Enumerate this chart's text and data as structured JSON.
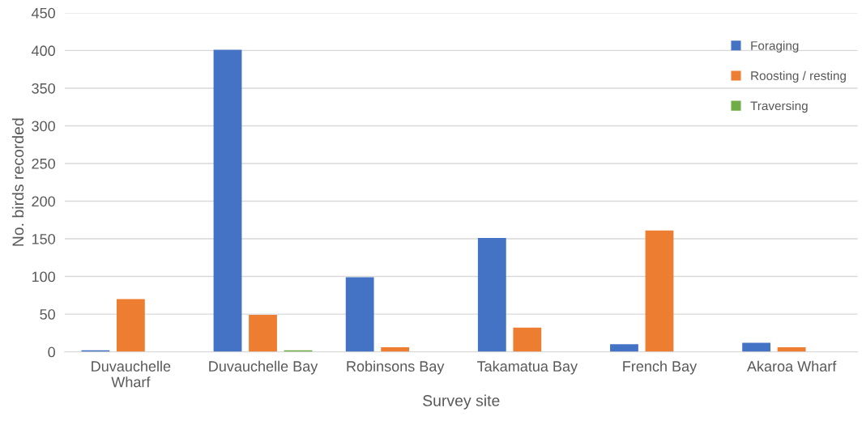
{
  "chart_data": {
    "type": "bar",
    "xlabel": "Survey site",
    "ylabel": "No. birds recorded",
    "categories": [
      "Duvauchelle\nWharf",
      "Duvauchelle Bay",
      "Robinsons Bay",
      "Takamatua Bay",
      "French Bay",
      "Akaroa Wharf"
    ],
    "series": [
      {
        "name": "Foraging",
        "color": "#4472c4",
        "values": [
          2,
          401,
          99,
          151,
          10,
          12
        ]
      },
      {
        "name": "Roosting / resting",
        "color": "#ed7d31",
        "values": [
          70,
          49,
          6,
          32,
          161,
          6
        ]
      },
      {
        "name": "Traversing",
        "color": "#70ad47",
        "values": [
          null,
          2,
          null,
          null,
          null,
          null
        ]
      }
    ],
    "ylim": [
      0,
      450
    ],
    "yticks": [
      0,
      50,
      100,
      150,
      200,
      250,
      300,
      350,
      400,
      450
    ],
    "grid": "y",
    "legend": "top right"
  }
}
